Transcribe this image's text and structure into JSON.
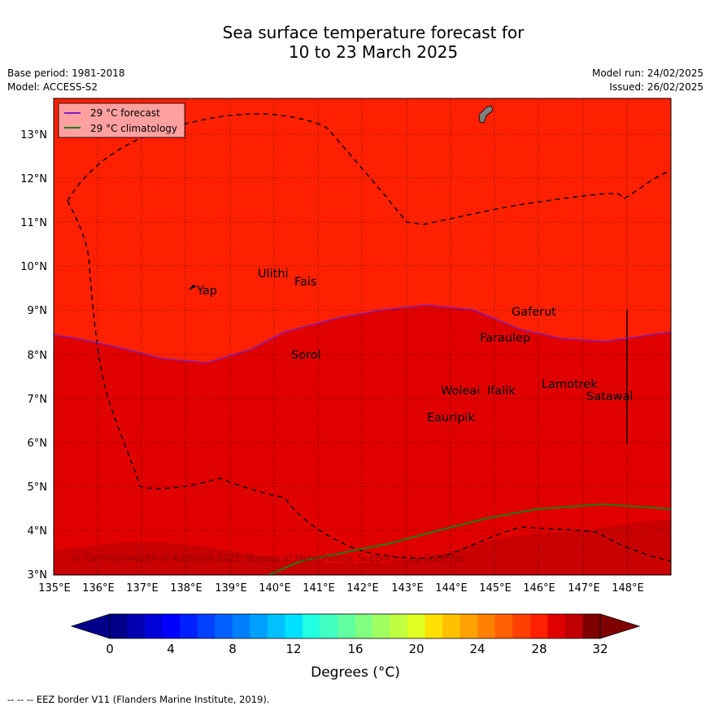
{
  "title_line1": "Sea surface temperature forecast for",
  "title_line2": "10 to 23 March 2025",
  "meta_left": [
    "Base period: 1981-2018",
    "Model: ACCESS-S2"
  ],
  "meta_right": [
    "Model run: 24/02/2025",
    "Issued: 26/02/2025"
  ],
  "legend": {
    "forecast_label": "29 °C  forecast",
    "climatology_label": "29 °C  climatology",
    "forecast_color": "#7a1fc8",
    "climatology_color": "#1f7a1f"
  },
  "lon_ticks": [
    "135°E",
    "136°E",
    "137°E",
    "138°E",
    "139°E",
    "140°E",
    "141°E",
    "142°E",
    "143°E",
    "144°E",
    "145°E",
    "146°E",
    "147°E",
    "148°E"
  ],
  "lat_ticks": [
    "13°N",
    "12°N",
    "11°N",
    "10°N",
    "9°N",
    "8°N",
    "7°N",
    "6°N",
    "5°N",
    "4°N",
    "3°N"
  ],
  "places": [
    "Yap",
    "Ulithi",
    "Fais",
    "Gaferut",
    "Faraulep",
    "Sorol",
    "Woleai",
    "Ifalik",
    "Lamotrek",
    "Satawal",
    "Eauripik"
  ],
  "copyright": "© Commonwealth of Australia 2025, Bureau of Meteorology. Supported by COSPPac",
  "colorbar": {
    "ticks": [
      "0",
      "4",
      "8",
      "12",
      "16",
      "20",
      "24",
      "28",
      "32"
    ],
    "label": "Degrees (°C)",
    "colors": [
      "#00008b",
      "#0000b0",
      "#0000d8",
      "#0000ff",
      "#0020ff",
      "#0040ff",
      "#0060ff",
      "#0080ff",
      "#00a0ff",
      "#00c0ff",
      "#00e0ff",
      "#20ffe0",
      "#40ffc0",
      "#60ffa0",
      "#80ff80",
      "#a0ff60",
      "#c0ff40",
      "#e0ff20",
      "#ffe000",
      "#ffc000",
      "#ffa000",
      "#ff8000",
      "#ff6000",
      "#ff4000",
      "#ff2000",
      "#e00000",
      "#c00000",
      "#800000"
    ],
    "under_color": "#00008b",
    "over_color": "#800000"
  },
  "map_colors": {
    "warm_28_30": "#ff2000",
    "warm_30_31": "#e00000",
    "warm_31_32": "#c80000"
  },
  "eez_note": "--  --  -- EEZ border V11 (Flanders Marine Institute, 2019)."
}
